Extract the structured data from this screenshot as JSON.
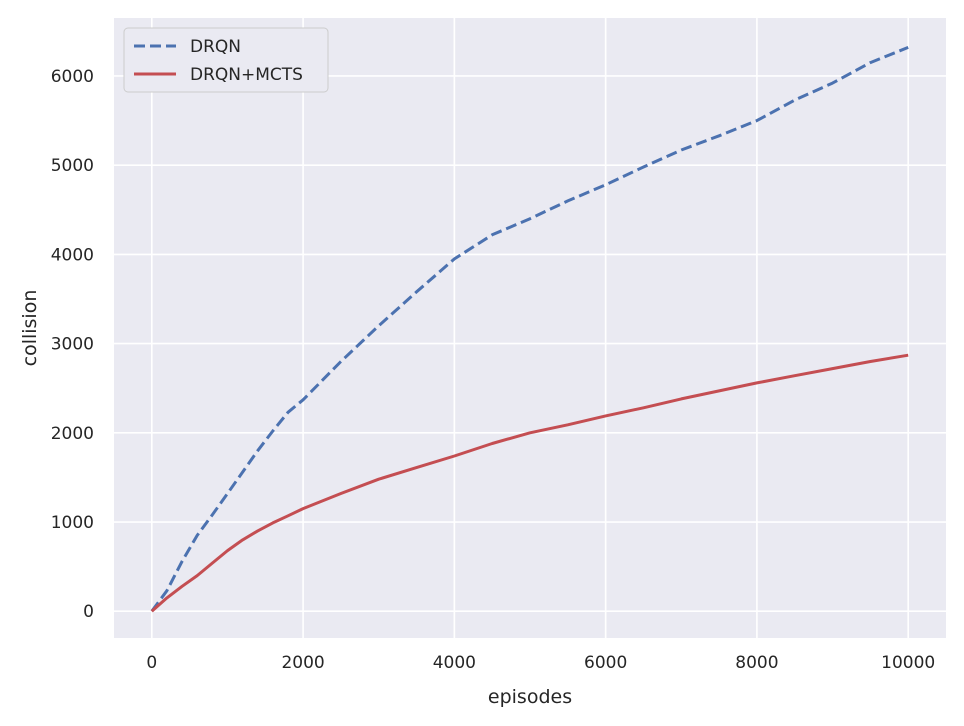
{
  "chart_data": {
    "type": "line",
    "title": "",
    "xlabel": "episodes",
    "ylabel": "collision",
    "xlim": [
      -500,
      10500
    ],
    "ylim": [
      -300,
      6650
    ],
    "xticks": [
      0,
      2000,
      4000,
      6000,
      8000,
      10000
    ],
    "yticks": [
      0,
      1000,
      2000,
      3000,
      4000,
      5000,
      6000
    ],
    "grid": true,
    "legend_position": "top-left",
    "background_color": "#eaeaf2",
    "series": [
      {
        "name": "DRQN",
        "style": "dashed",
        "color": "#4c72b0",
        "x": [
          0,
          200,
          400,
          600,
          800,
          1000,
          1200,
          1400,
          1600,
          1800,
          2000,
          2500,
          3000,
          3500,
          4000,
          4500,
          5000,
          5500,
          6000,
          6500,
          7000,
          7500,
          8000,
          8500,
          9000,
          9500,
          10000
        ],
        "y": [
          0,
          230,
          560,
          850,
          1080,
          1320,
          1560,
          1800,
          2020,
          2230,
          2370,
          2800,
          3200,
          3580,
          3950,
          4220,
          4400,
          4600,
          4780,
          4980,
          5170,
          5330,
          5500,
          5730,
          5920,
          6150,
          6320
        ]
      },
      {
        "name": "DRQN+MCTS",
        "style": "solid",
        "color": "#c44e52",
        "x": [
          0,
          200,
          400,
          600,
          800,
          1000,
          1200,
          1400,
          1600,
          1800,
          2000,
          2500,
          3000,
          3500,
          4000,
          4500,
          5000,
          5500,
          6000,
          6500,
          7000,
          7500,
          8000,
          8500,
          9000,
          9500,
          10000
        ],
        "y": [
          0,
          150,
          280,
          400,
          540,
          680,
          800,
          900,
          990,
          1070,
          1150,
          1320,
          1480,
          1610,
          1740,
          1880,
          2000,
          2090,
          2190,
          2280,
          2380,
          2470,
          2560,
          2640,
          2720,
          2800,
          2870
        ]
      }
    ]
  }
}
